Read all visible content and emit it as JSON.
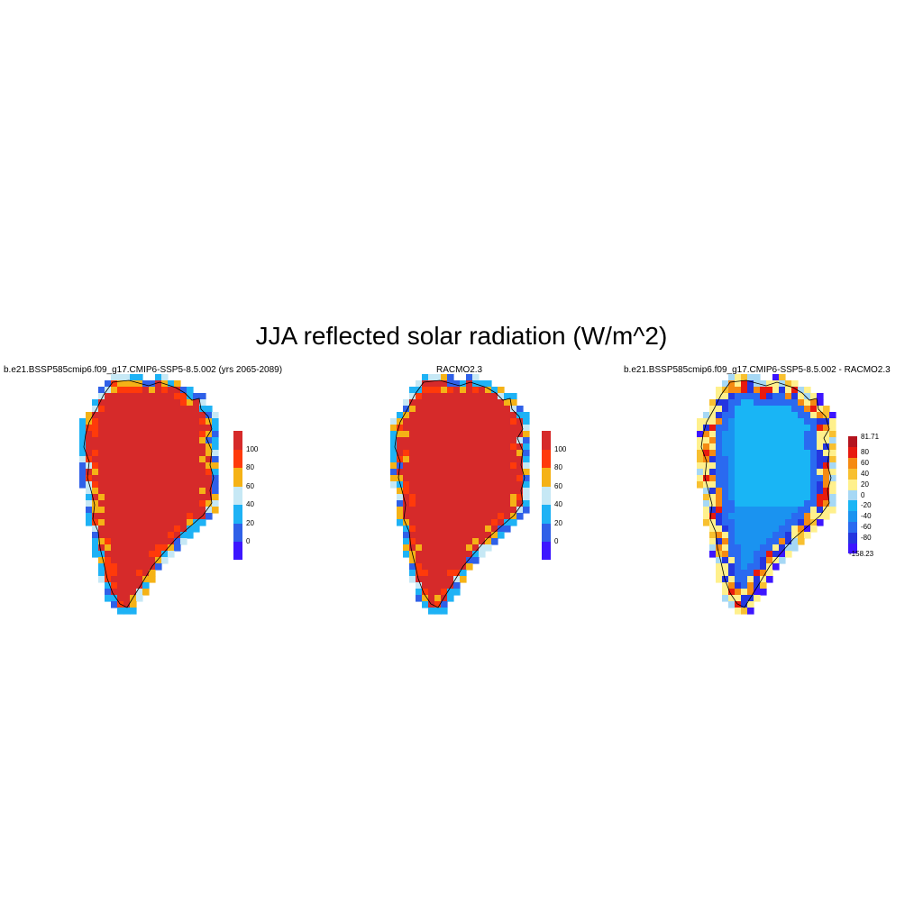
{
  "figure": {
    "title": "JJA reflected solar radiation (W/m^2)"
  },
  "panels": [
    {
      "title": "b.e21.BSSP585cmip6.f09_g17.CMIP6-SSP5-8.5.002 (yrs 2065-2089)",
      "field": "model",
      "legend": {
        "colors": [
          "#3d16ff",
          "#2f60e8",
          "#1eb2f5",
          "#c6e8f5",
          "#f5b216",
          "#ff3a0a",
          "#d62a2a"
        ],
        "labels": [
          "0",
          "20",
          "40",
          "60",
          "80",
          "100"
        ]
      }
    },
    {
      "title": "RACMO2.3",
      "field": "racmo",
      "legend": {
        "colors": [
          "#3d16ff",
          "#2f60e8",
          "#1eb2f5",
          "#c6e8f5",
          "#f5b216",
          "#ff3a0a",
          "#d62a2a"
        ],
        "labels": [
          "0",
          "20",
          "40",
          "60",
          "80",
          "100"
        ]
      }
    },
    {
      "title": "b.e21.BSSP585cmip6.f09_g17.CMIP6-SSP5-8.5.002 - RACMO2.3",
      "field": "difference",
      "legend": {
        "colors": [
          "#3d16ff",
          "#2436e0",
          "#2a6af0",
          "#1a93f0",
          "#19b5f5",
          "#a6d8f5",
          "#fff08c",
          "#f8c030",
          "#f58a12",
          "#e81a0f",
          "#b4141e"
        ],
        "labels": [
          "-158.23",
          "-80",
          "-60",
          "-40",
          "-20",
          "0",
          "20",
          "40",
          "60",
          "80",
          "81.71"
        ]
      }
    }
  ]
}
